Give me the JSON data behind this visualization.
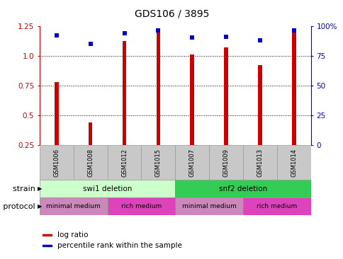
{
  "title": "GDS106 / 3895",
  "samples": [
    "GSM1006",
    "GSM1008",
    "GSM1012",
    "GSM1015",
    "GSM1007",
    "GSM1009",
    "GSM1013",
    "GSM1014"
  ],
  "log_ratio": [
    0.78,
    0.44,
    1.12,
    1.22,
    1.01,
    1.07,
    0.92,
    1.22
  ],
  "percentile_rank": [
    92,
    85,
    94,
    96,
    90,
    91,
    88,
    96
  ],
  "bar_color": "#cc0000",
  "dot_color": "#0000cc",
  "ylim_left": [
    0.25,
    1.25
  ],
  "ylim_right": [
    0,
    100
  ],
  "yticks_left": [
    0.25,
    0.5,
    0.75,
    1.0,
    1.25
  ],
  "yticks_right": [
    0,
    25,
    50,
    75,
    100
  ],
  "dotted_lines": [
    0.5,
    0.75,
    1.0
  ],
  "strain_labels": [
    {
      "label": "swi1 deletion",
      "start": 0,
      "end": 4,
      "color": "#ccffcc"
    },
    {
      "label": "snf2 deletion",
      "start": 4,
      "end": 8,
      "color": "#33cc55"
    }
  ],
  "growth_labels": [
    {
      "label": "minimal medium",
      "start": 0,
      "end": 2,
      "color": "#cc88bb"
    },
    {
      "label": "rich medium",
      "start": 2,
      "end": 4,
      "color": "#dd44bb"
    },
    {
      "label": "minimal medium",
      "start": 4,
      "end": 6,
      "color": "#cc88bb"
    },
    {
      "label": "rich medium",
      "start": 6,
      "end": 8,
      "color": "#dd44bb"
    }
  ],
  "legend_items": [
    {
      "label": "log ratio",
      "color": "#cc0000"
    },
    {
      "label": "percentile rank within the sample",
      "color": "#0000cc"
    }
  ],
  "strain_row_label": "strain",
  "growth_row_label": "growth protocol",
  "background_color": "#ffffff",
  "bar_width": 0.12,
  "dot_size": 5
}
